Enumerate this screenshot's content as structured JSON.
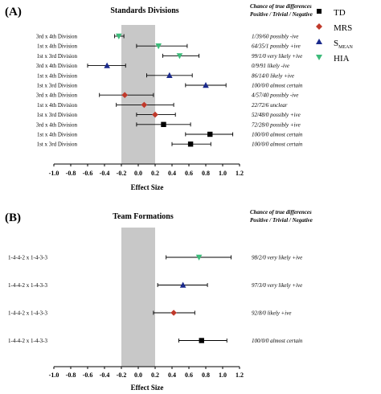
{
  "panel_a": {
    "letter": "(A)",
    "title": "Standards Divisions",
    "header_line1": "Chance of true differences",
    "header_line2": "Positive / Trivial / Negative",
    "xlabel": "Effect Size"
  },
  "panel_b": {
    "letter": "(B)",
    "title": "Team Formations",
    "header_line1": "Chance of true differences",
    "header_line2": "Positive / Trivial / Negative",
    "xlabel": "Effect Size"
  },
  "legend": [
    {
      "label": "TD",
      "marker": "square",
      "color": "#000000"
    },
    {
      "label": "MRS",
      "marker": "diamond",
      "color": "#c0392b"
    },
    {
      "label": "S",
      "sub": "MEAN",
      "marker": "triangle-up",
      "color": "#1a2a8c"
    },
    {
      "label": "HIA",
      "marker": "triangle-down",
      "color": "#3dbb7a"
    }
  ],
  "colors": {
    "TD": "#000000",
    "MRS": "#c0392b",
    "SMEAN": "#1a2a8c",
    "HIA": "#3dbb7a",
    "trivial_band": "#c8c8c8"
  },
  "chart_data": [
    {
      "type": "scatter",
      "subtype": "forest-plot",
      "title": "Standards Divisions",
      "xlabel": "Effect Size",
      "xlim": [
        -1.0,
        1.2
      ],
      "xticks": [
        "-1.0",
        "-0.8",
        "-0.6",
        "-0.4",
        "-0.2",
        "0.0",
        "0.2",
        "0.4",
        "0.6",
        "0.8",
        "1.0",
        "1.2"
      ],
      "trivial_band": [
        -0.2,
        0.2
      ],
      "rows": [
        {
          "label": "3rd x 4th Division",
          "series": "HIA",
          "est": -0.23,
          "lo": -0.28,
          "hi": -0.17,
          "chance": "1/39/60 possibly -ive"
        },
        {
          "label": "1st x 4th Division",
          "series": "HIA",
          "est": 0.24,
          "lo": -0.02,
          "hi": 0.58,
          "chance": "64/35/1 possibly +ive"
        },
        {
          "label": "1st x 3rd Division",
          "series": "HIA",
          "est": 0.49,
          "lo": 0.29,
          "hi": 0.72,
          "chance": "99/1/0 very likely +ive"
        },
        {
          "label": "3rd x 4th Division",
          "series": "SMEAN",
          "est": -0.37,
          "lo": -0.6,
          "hi": -0.15,
          "chance": "0/9/91 likely -ive"
        },
        {
          "label": "1st x 4th Division",
          "series": "SMEAN",
          "est": 0.37,
          "lo": 0.1,
          "hi": 0.64,
          "chance": "86/14/0 likely +ive"
        },
        {
          "label": "1st x 3rd Division",
          "series": "SMEAN",
          "est": 0.8,
          "lo": 0.56,
          "hi": 1.04,
          "chance": "100/0/0 almost certain"
        },
        {
          "label": "3rd x 4th Division",
          "series": "MRS",
          "est": -0.16,
          "lo": -0.46,
          "hi": 0.18,
          "chance": "4/57/40 possibly -ive"
        },
        {
          "label": "1st x 4th Division",
          "series": "MRS",
          "est": 0.07,
          "lo": -0.26,
          "hi": 0.42,
          "chance": "22/72/6 unclear"
        },
        {
          "label": "1st x 3rd Division",
          "series": "MRS",
          "est": 0.2,
          "lo": -0.02,
          "hi": 0.44,
          "chance": "52/48/0 possibly +ive"
        },
        {
          "label": "3rd x 4th Division",
          "series": "TD",
          "est": 0.3,
          "lo": -0.02,
          "hi": 0.62,
          "chance": "72/28/0 possibly +ive"
        },
        {
          "label": "1st x 4th Division",
          "series": "TD",
          "est": 0.85,
          "lo": 0.56,
          "hi": 1.12,
          "chance": "100/0/0 almost certain"
        },
        {
          "label": "1st x 3rd Division",
          "series": "TD",
          "est": 0.62,
          "lo": 0.4,
          "hi": 0.86,
          "chance": "100/0/0 almost certain"
        }
      ]
    },
    {
      "type": "scatter",
      "subtype": "forest-plot",
      "title": "Team Formations",
      "xlabel": "Effect Size",
      "xlim": [
        -1.0,
        1.2
      ],
      "xticks": [
        "-1.0",
        "-0.8",
        "-0.6",
        "-0.4",
        "-0.2",
        "0.0",
        "0.2",
        "0.4",
        "0.6",
        "0.8",
        "1.0",
        "1.2"
      ],
      "trivial_band": [
        -0.2,
        0.2
      ],
      "rows": [
        {
          "label": "1-4-4-2 x 1-4-3-3",
          "series": "HIA",
          "est": 0.72,
          "lo": 0.33,
          "hi": 1.1,
          "chance": "98/2/0 very likely +ive"
        },
        {
          "label": "1-4-4-2 x 1-4-3-3",
          "series": "SMEAN",
          "est": 0.53,
          "lo": 0.23,
          "hi": 0.82,
          "chance": "97/3/0 very likely +ive"
        },
        {
          "label": "1-4-4-2 x 1-4-3-3",
          "series": "MRS",
          "est": 0.42,
          "lo": 0.18,
          "hi": 0.67,
          "chance": "92/8/0 likely +ive"
        },
        {
          "label": "1-4-4-2 x 1-4-3-3",
          "series": "TD",
          "est": 0.75,
          "lo": 0.48,
          "hi": 1.05,
          "chance": "100/0/0 almost certain"
        }
      ]
    }
  ]
}
